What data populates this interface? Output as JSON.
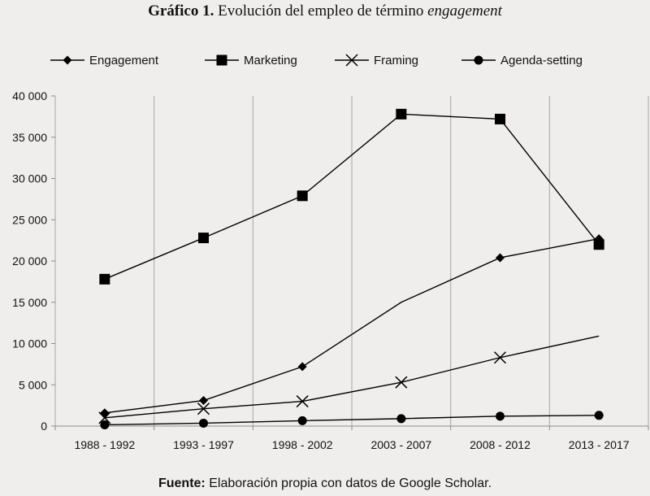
{
  "title": {
    "lead": "Gráfico 1.",
    "text": "Evolución del empleo de término",
    "emphasis": "engagement"
  },
  "source": {
    "lead": "Fuente:",
    "text": "Elaboración propia con datos de Google Scholar."
  },
  "chart_data": {
    "type": "line",
    "categories": [
      "1988 - 1992",
      "1993 - 1997",
      "1998 - 2002",
      "2003 - 2007",
      "2008 - 2012",
      "2013 - 2017"
    ],
    "series": [
      {
        "name": "Engagement",
        "marker": "diamond",
        "values": [
          1600,
          3100,
          7200,
          15000,
          20400,
          22700
        ],
        "marked": [
          true,
          true,
          true,
          false,
          true,
          true
        ]
      },
      {
        "name": "Marketing",
        "marker": "square",
        "values": [
          17800,
          22800,
          27900,
          37800,
          37200,
          22000
        ],
        "marked": [
          true,
          true,
          true,
          true,
          true,
          true
        ]
      },
      {
        "name": "Framing",
        "marker": "x",
        "values": [
          1000,
          2100,
          3000,
          5300,
          8300,
          10900
        ],
        "marked": [
          true,
          true,
          true,
          true,
          true,
          false
        ]
      },
      {
        "name": "Agenda-setting",
        "marker": "circle",
        "values": [
          150,
          350,
          650,
          900,
          1200,
          1300
        ],
        "marked": [
          true,
          true,
          true,
          true,
          true,
          true
        ]
      }
    ],
    "ylim": [
      0,
      40000
    ],
    "yticks": [
      0,
      5000,
      10000,
      15000,
      20000,
      25000,
      30000,
      35000,
      40000
    ],
    "ytick_labels": [
      "0",
      "5 000",
      "10 000",
      "15 000",
      "20 000",
      "25 000",
      "30 000",
      "35 000",
      "40 000"
    ],
    "grid": "vertical",
    "legend": "top",
    "line_color": "#000000",
    "background_color": "#efeeec",
    "gridline_color": "#a6a6a6"
  }
}
